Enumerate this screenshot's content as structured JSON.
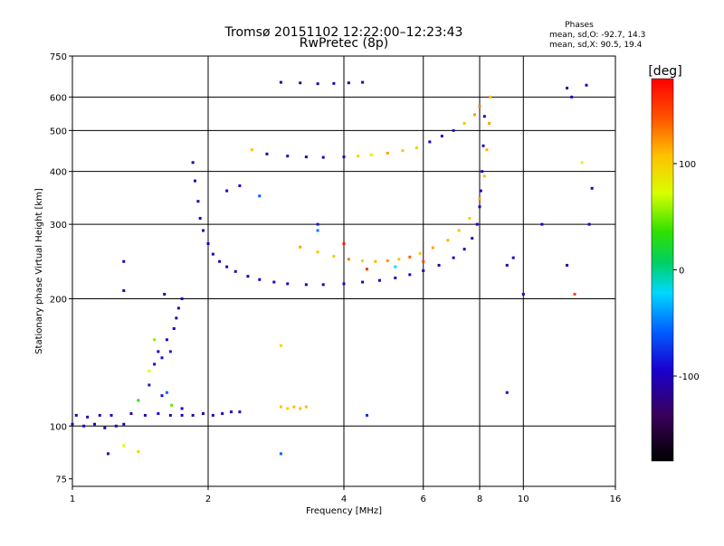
{
  "chart_data": {
    "type": "scatter",
    "title": "Tromsø 20151102 12:22:00–12:23:43",
    "subtitle": "RwPretec (8p)",
    "xlabel": "Frequency [MHz]",
    "ylabel": "Stationary phase Virtual Height [km]",
    "x_scale": "log",
    "y_scale": "log",
    "xlim": [
      1,
      16
    ],
    "ylim": [
      72,
      750
    ],
    "xticks": [
      1,
      2,
      4,
      6,
      8,
      10,
      16
    ],
    "yticks": [
      75,
      100,
      200,
      300,
      400,
      500,
      600,
      750
    ],
    "grid": true,
    "legend": {
      "title": "Phases",
      "lines": [
        "mean, sd,O: -92.7, 14.3",
        "mean, sd,X:  90.5, 19.4"
      ]
    },
    "colorbar": {
      "unit": "[deg]",
      "range": [
        -180,
        180
      ],
      "ticks": [
        100,
        0,
        -100
      ]
    },
    "series": [
      {
        "points": [
          [
            1.0,
            101,
            -110
          ],
          [
            1.06,
            100,
            -105
          ],
          [
            1.12,
            101,
            -112
          ],
          [
            1.18,
            99,
            -108
          ],
          [
            1.25,
            100,
            -115
          ],
          [
            1.3,
            101,
            -110
          ],
          [
            1.02,
            106,
            -112
          ],
          [
            1.08,
            105,
            -110
          ],
          [
            1.15,
            106,
            -105
          ],
          [
            1.22,
            106,
            -108
          ],
          [
            1.35,
            107,
            -112
          ],
          [
            1.45,
            106,
            -110
          ],
          [
            1.55,
            107,
            -105
          ],
          [
            1.65,
            106,
            -110
          ],
          [
            1.75,
            106,
            -108
          ],
          [
            1.85,
            106,
            -112
          ],
          [
            1.95,
            107,
            -110
          ],
          [
            2.05,
            106,
            -108
          ],
          [
            2.15,
            107,
            -105
          ],
          [
            2.25,
            108,
            -110
          ],
          [
            2.35,
            108,
            -112
          ]
        ]
      },
      {
        "points": [
          [
            1.4,
            115,
            40
          ],
          [
            1.48,
            125,
            -90
          ],
          [
            1.52,
            140,
            -100
          ],
          [
            1.55,
            150,
            -110
          ],
          [
            1.58,
            145,
            -95
          ],
          [
            1.62,
            160,
            -105
          ],
          [
            1.65,
            150,
            -90
          ],
          [
            1.68,
            170,
            -100
          ],
          [
            1.7,
            180,
            -115
          ],
          [
            1.72,
            190,
            -110
          ],
          [
            1.75,
            200,
            -100
          ],
          [
            1.62,
            120,
            -60
          ],
          [
            1.66,
            112,
            50
          ],
          [
            1.52,
            160,
            60
          ],
          [
            1.48,
            135,
            80
          ],
          [
            1.58,
            118,
            -95
          ],
          [
            1.75,
            110,
            -100
          ]
        ]
      },
      {
        "points": [
          [
            1.85,
            420,
            -110
          ],
          [
            1.87,
            380,
            -105
          ],
          [
            1.9,
            340,
            -112
          ],
          [
            1.92,
            310,
            -108
          ],
          [
            1.95,
            290,
            -115
          ],
          [
            2.0,
            270,
            -110
          ],
          [
            2.05,
            255,
            -105
          ],
          [
            2.12,
            245,
            -112
          ],
          [
            2.2,
            238,
            -108
          ],
          [
            2.3,
            232,
            -110
          ],
          [
            2.45,
            226,
            -112
          ],
          [
            2.6,
            222,
            -108
          ],
          [
            2.8,
            219,
            -110
          ],
          [
            3.0,
            217,
            -105
          ],
          [
            3.3,
            216,
            -112
          ],
          [
            3.6,
            216,
            -108
          ],
          [
            4.0,
            217,
            -110
          ],
          [
            4.4,
            219,
            -112
          ],
          [
            4.8,
            221,
            -108
          ],
          [
            5.2,
            224,
            -110
          ],
          [
            5.6,
            228,
            -105
          ],
          [
            6.0,
            233,
            -110
          ],
          [
            6.5,
            240,
            -108
          ],
          [
            7.0,
            250,
            -112
          ],
          [
            7.4,
            262,
            -110
          ],
          [
            7.7,
            278,
            -105
          ],
          [
            7.9,
            300,
            -110
          ],
          [
            8.0,
            330,
            -108
          ],
          [
            8.05,
            360,
            -112
          ],
          [
            8.1,
            400,
            -110
          ],
          [
            8.15,
            460,
            -108
          ],
          [
            8.2,
            540,
            -112
          ]
        ]
      },
      {
        "points": [
          [
            3.2,
            265,
            120
          ],
          [
            3.5,
            258,
            110
          ],
          [
            3.8,
            252,
            105
          ],
          [
            4.1,
            248,
            130
          ],
          [
            4.4,
            246,
            100
          ],
          [
            4.7,
            245,
            115
          ],
          [
            5.0,
            246,
            125
          ],
          [
            5.3,
            248,
            110
          ],
          [
            5.6,
            251,
            140
          ],
          [
            5.9,
            256,
            105
          ],
          [
            6.3,
            264,
            120
          ],
          [
            6.8,
            275,
            115
          ],
          [
            7.2,
            290,
            110
          ],
          [
            7.6,
            310,
            100
          ],
          [
            8.0,
            345,
            120
          ],
          [
            8.2,
            390,
            110
          ],
          [
            8.3,
            450,
            115
          ],
          [
            8.4,
            520,
            120
          ],
          [
            8.45,
            600,
            110
          ],
          [
            3.5,
            290,
            -50
          ],
          [
            4.0,
            270,
            170
          ],
          [
            4.5,
            235,
            160
          ],
          [
            5.2,
            238,
            -20
          ],
          [
            6.0,
            245,
            150
          ]
        ]
      },
      {
        "points": [
          [
            2.5,
            450,
            110
          ],
          [
            2.7,
            440,
            -110
          ],
          [
            3.0,
            435,
            -105
          ],
          [
            3.3,
            433,
            -112
          ],
          [
            3.6,
            432,
            -108
          ],
          [
            4.0,
            433,
            -110
          ],
          [
            4.3,
            435,
            100
          ],
          [
            4.6,
            438,
            90
          ],
          [
            5.0,
            442,
            120
          ],
          [
            5.4,
            448,
            110
          ],
          [
            5.8,
            455,
            105
          ],
          [
            6.2,
            470,
            -100
          ],
          [
            6.6,
            485,
            -95
          ],
          [
            7.0,
            500,
            -90
          ],
          [
            7.4,
            520,
            110
          ],
          [
            7.8,
            545,
            120
          ],
          [
            8.0,
            570,
            130
          ]
        ]
      },
      {
        "points": [
          [
            2.9,
            650,
            -115
          ],
          [
            3.2,
            648,
            -110
          ],
          [
            3.5,
            645,
            -120
          ],
          [
            3.8,
            646,
            -112
          ],
          [
            4.1,
            648,
            -108
          ],
          [
            4.4,
            650,
            -110
          ]
        ]
      },
      {
        "points": [
          [
            2.9,
            111,
            110
          ],
          [
            3.0,
            110,
            105
          ],
          [
            3.1,
            111,
            110
          ],
          [
            3.2,
            110,
            108
          ],
          [
            3.3,
            111,
            112
          ],
          [
            2.2,
            360,
            -105
          ],
          [
            2.35,
            370,
            -100
          ],
          [
            2.6,
            350,
            -60
          ],
          [
            3.5,
            300,
            -90
          ],
          [
            4.5,
            106,
            -80
          ],
          [
            9.2,
            240,
            -110
          ],
          [
            9.5,
            250,
            -105
          ],
          [
            10.0,
            205,
            -110
          ],
          [
            11.0,
            300,
            -100
          ],
          [
            12.5,
            240,
            -105
          ],
          [
            13.0,
            205,
            150
          ],
          [
            13.5,
            420,
            80
          ],
          [
            12.8,
            600,
            -112
          ],
          [
            13.8,
            640,
            -110
          ],
          [
            14.2,
            365,
            -110
          ],
          [
            14.0,
            300,
            -100
          ],
          [
            12.5,
            630,
            -115
          ],
          [
            9.2,
            120,
            -110
          ],
          [
            2.9,
            155,
            100
          ],
          [
            1.3,
            90,
            80
          ],
          [
            1.4,
            87,
            100
          ],
          [
            1.2,
            86,
            -110
          ],
          [
            2.9,
            86,
            -60
          ],
          [
            1.3,
            209,
            -112
          ],
          [
            1.3,
            245,
            -105
          ],
          [
            1.6,
            205,
            -110
          ]
        ]
      }
    ]
  }
}
